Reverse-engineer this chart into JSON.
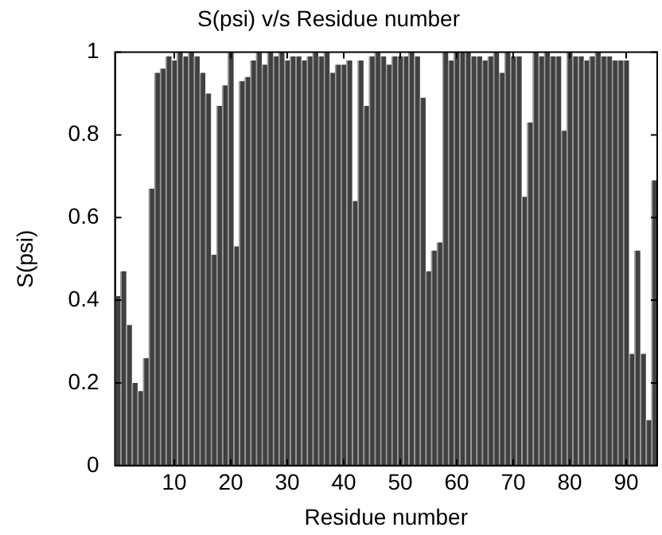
{
  "chart_data": {
    "type": "bar",
    "title": "S(psi) v/s Residue number",
    "xlabel": "Residue number",
    "ylabel": "S(psi)",
    "x": [
      0,
      1,
      2,
      3,
      4,
      5,
      6,
      7,
      8,
      9,
      10,
      11,
      12,
      13,
      14,
      15,
      16,
      17,
      18,
      19,
      20,
      21,
      22,
      23,
      24,
      25,
      26,
      27,
      28,
      29,
      30,
      31,
      32,
      33,
      34,
      35,
      36,
      37,
      38,
      39,
      40,
      41,
      42,
      43,
      44,
      45,
      46,
      47,
      48,
      49,
      50,
      51,
      52,
      53,
      54,
      55,
      56,
      57,
      58,
      59,
      60,
      61,
      62,
      63,
      64,
      65,
      66,
      67,
      68,
      69,
      70,
      71,
      72,
      73,
      74,
      75,
      76,
      77,
      78,
      79,
      80,
      81,
      82,
      83,
      84,
      85,
      86,
      87,
      88,
      89,
      90,
      91,
      92,
      93,
      94,
      95
    ],
    "values": [
      0.41,
      0.47,
      0.34,
      0.2,
      0.18,
      0.26,
      0.67,
      0.95,
      0.96,
      0.99,
      0.98,
      1.0,
      0.99,
      1.0,
      0.99,
      0.95,
      0.9,
      0.51,
      0.87,
      0.92,
      1.0,
      0.53,
      0.93,
      0.94,
      0.98,
      1.0,
      0.97,
      1.0,
      0.99,
      1.0,
      0.98,
      0.99,
      0.99,
      0.98,
      0.99,
      1.0,
      0.99,
      1.0,
      0.95,
      0.97,
      0.97,
      0.98,
      0.64,
      0.98,
      0.87,
      0.99,
      1.0,
      0.99,
      0.97,
      0.99,
      0.99,
      0.99,
      1.0,
      0.99,
      0.89,
      0.47,
      0.52,
      0.54,
      1.0,
      0.98,
      1.0,
      1.0,
      1.0,
      0.99,
      0.99,
      0.98,
      0.99,
      1.0,
      0.95,
      1.0,
      0.99,
      0.99,
      0.65,
      0.83,
      1.0,
      0.99,
      1.0,
      0.99,
      0.99,
      0.81,
      1.0,
      0.99,
      0.99,
      0.98,
      0.99,
      1.0,
      0.99,
      0.99,
      0.98,
      0.98,
      0.98,
      0.27,
      0.52,
      0.27,
      0.11,
      0.69
    ],
    "color": "#404040",
    "xlim": [
      -0.5,
      95.5
    ],
    "xticks": [
      10,
      20,
      30,
      40,
      50,
      60,
      70,
      80,
      90
    ],
    "ylim": [
      0,
      1
    ],
    "yticks": [
      0,
      {
        "value": 0.2,
        "label": "0.2"
      },
      {
        "value": 0.4,
        "label": "0.4"
      },
      {
        "value": 0.6,
        "label": "0.6"
      },
      {
        "value": 0.8,
        "label": "0.8"
      },
      1
    ],
    "grid": false,
    "legend": false
  }
}
